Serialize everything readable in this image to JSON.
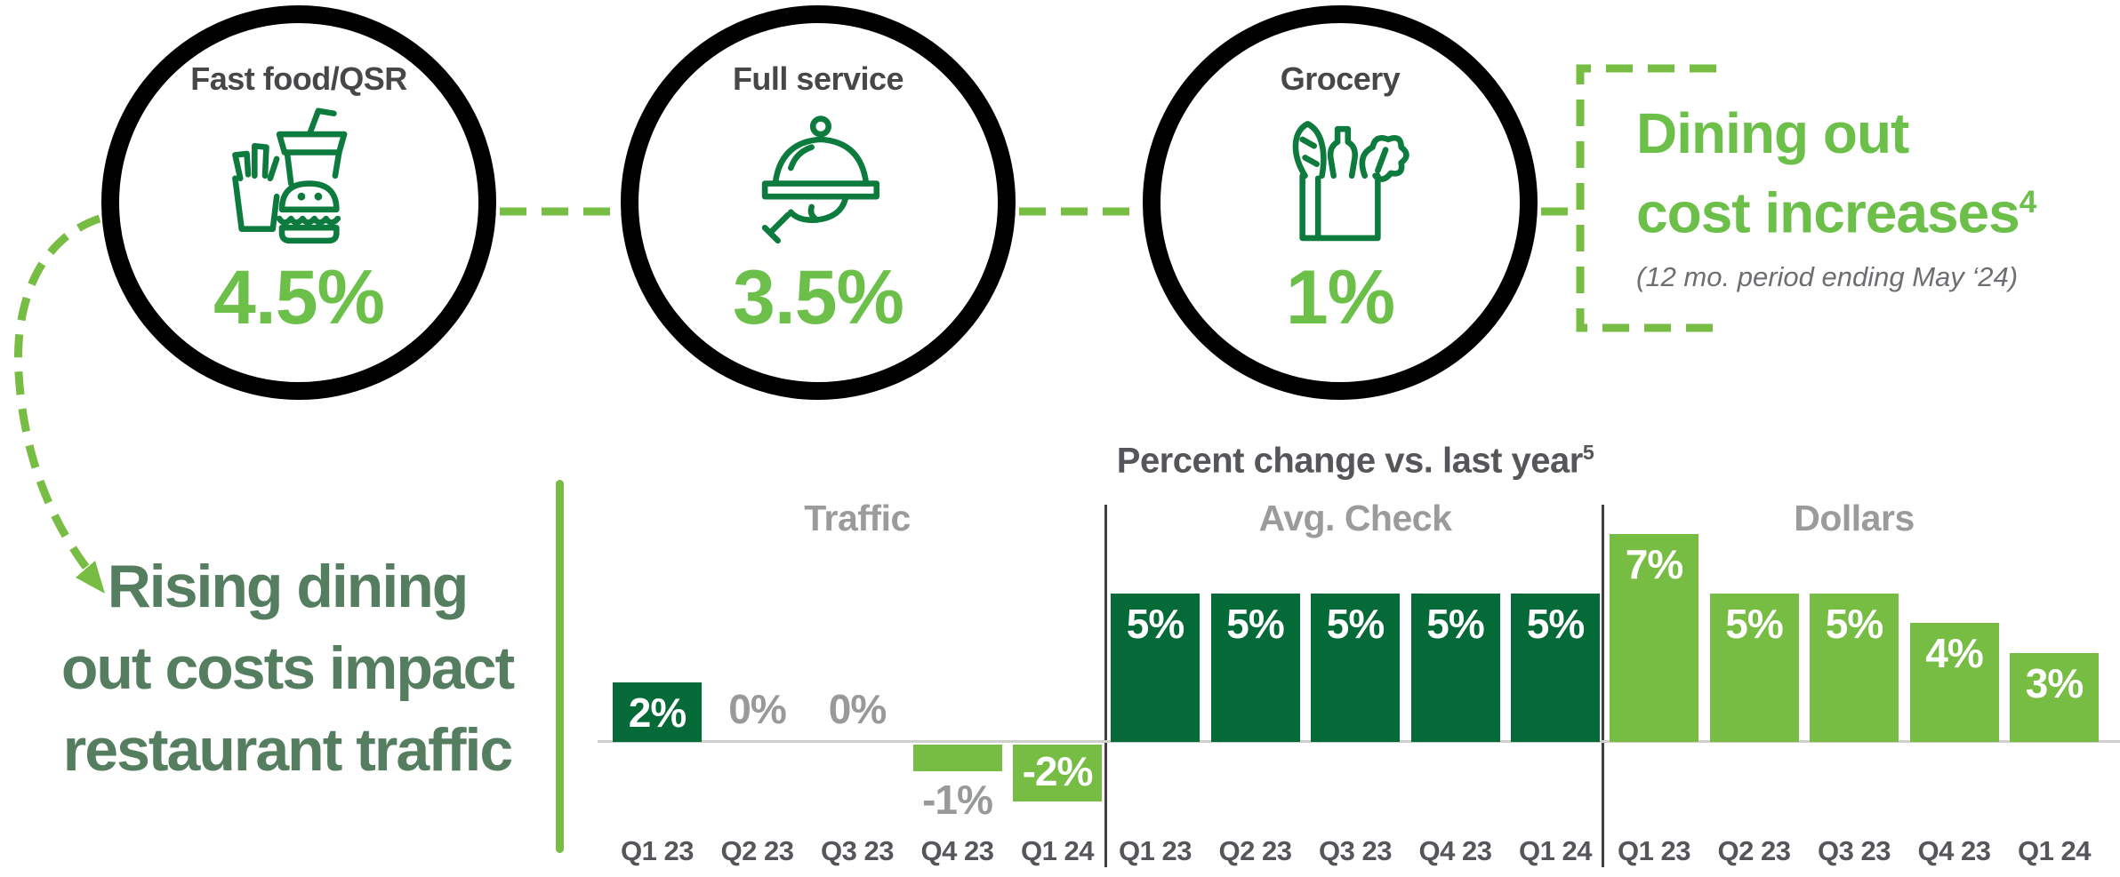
{
  "colors": {
    "black": "#000000",
    "dark_green": "#046a38",
    "light_green": "#77bc43",
    "bright_green": "#6cc04a",
    "icon_green": "#0e7b3e",
    "muted_green": "#557d5f",
    "title_gray": "#555659",
    "group_label_gray": "#9b9b9b",
    "value_gray": "#97999b",
    "quarter_gray": "#55565a",
    "circle_label_gray": "#474749",
    "subtitle_gray": "#6d6e71",
    "baseline_gray": "#d0d0ce",
    "divider_gray": "#3f3f41"
  },
  "top_section": {
    "circles": [
      {
        "label": "Fast food/QSR",
        "icon": "fastfood-icon",
        "value": "4.5%"
      },
      {
        "label": "Full service",
        "icon": "cloche-icon",
        "value": "3.5%"
      },
      {
        "label": "Grocery",
        "icon": "grocery-bag-icon",
        "value": "1%"
      }
    ],
    "callout": {
      "title_lines": [
        "Dining out",
        "cost increases"
      ],
      "title_superscript": "4",
      "subtitle": "(12 mo. period ending May ‘24)"
    }
  },
  "headline": {
    "lines": [
      "Rising dining",
      "out costs impact",
      "restaurant traffic"
    ]
  },
  "chart_data": {
    "type": "bar",
    "title": "Percent change vs. last year",
    "title_superscript": "5",
    "value_suffix": "%",
    "categories": [
      "Q1 23",
      "Q2 23",
      "Q3 23",
      "Q4 23",
      "Q1 24"
    ],
    "groups": [
      {
        "name": "Traffic",
        "values": [
          2,
          0,
          0,
          -1,
          -2
        ],
        "bar_colors": [
          "#046a38",
          null,
          null,
          "#77bc43",
          "#77bc43"
        ]
      },
      {
        "name": "Avg. Check",
        "values": [
          5,
          5,
          5,
          5,
          5
        ],
        "bar_colors": [
          "#046a38",
          "#046a38",
          "#046a38",
          "#046a38",
          "#046a38"
        ]
      },
      {
        "name": "Dollars",
        "values": [
          7,
          5,
          5,
          4,
          3
        ],
        "bar_colors": [
          "#77bc43",
          "#77bc43",
          "#77bc43",
          "#77bc43",
          "#77bc43"
        ]
      }
    ],
    "ylim": [
      -2,
      7
    ],
    "baseline": 0,
    "gridlines": false,
    "legend": null
  }
}
